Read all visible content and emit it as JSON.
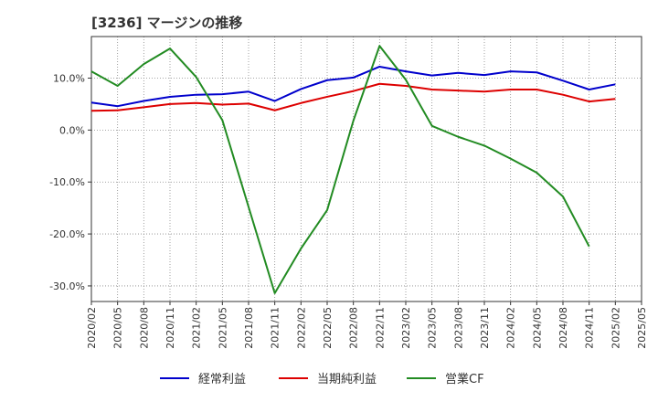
{
  "chart_data": {
    "type": "line",
    "title": "[3236]  マージンの推移",
    "x": [
      "2020/02",
      "2020/05",
      "2020/08",
      "2020/11",
      "2021/02",
      "2021/05",
      "2021/08",
      "2021/11",
      "2022/02",
      "2022/05",
      "2022/08",
      "2022/11",
      "2023/02",
      "2023/05",
      "2023/08",
      "2023/11",
      "2024/02",
      "2024/05",
      "2024/08",
      "2024/11",
      "2025/02",
      "2025/05"
    ],
    "yticks": [
      10,
      0,
      -10,
      -20,
      -30
    ],
    "ytick_labels": [
      "10.0%",
      "0.0%",
      "-10.0%",
      "-20.0%",
      "-30.0%"
    ],
    "ylim": [
      -33,
      18
    ],
    "grid": true,
    "legend_position": "bottom",
    "series": [
      {
        "name": "経常利益",
        "color": "#0000cc",
        "values": [
          5.3,
          4.6,
          5.6,
          6.4,
          6.8,
          6.9,
          7.4,
          5.6,
          7.9,
          9.6,
          10.1,
          12.2,
          11.3,
          10.5,
          11.0,
          10.6,
          11.3,
          11.1,
          9.5,
          7.8,
          8.8,
          null
        ]
      },
      {
        "name": "当期純利益",
        "color": "#dd0000",
        "values": [
          3.7,
          3.8,
          4.4,
          5.0,
          5.2,
          4.9,
          5.1,
          3.8,
          5.2,
          6.4,
          7.5,
          8.9,
          8.5,
          7.8,
          7.6,
          7.4,
          7.8,
          7.8,
          6.8,
          5.5,
          6.0,
          null
        ]
      },
      {
        "name": "営業CF",
        "color": "#228b22",
        "values": [
          11.3,
          8.5,
          12.7,
          15.7,
          10.2,
          1.9,
          -14.8,
          -31.4,
          -22.8,
          -15.4,
          1.8,
          16.2,
          9.7,
          0.8,
          -1.3,
          -3.0,
          -5.5,
          -8.2,
          -12.8,
          -22.4,
          null,
          null
        ]
      }
    ]
  }
}
